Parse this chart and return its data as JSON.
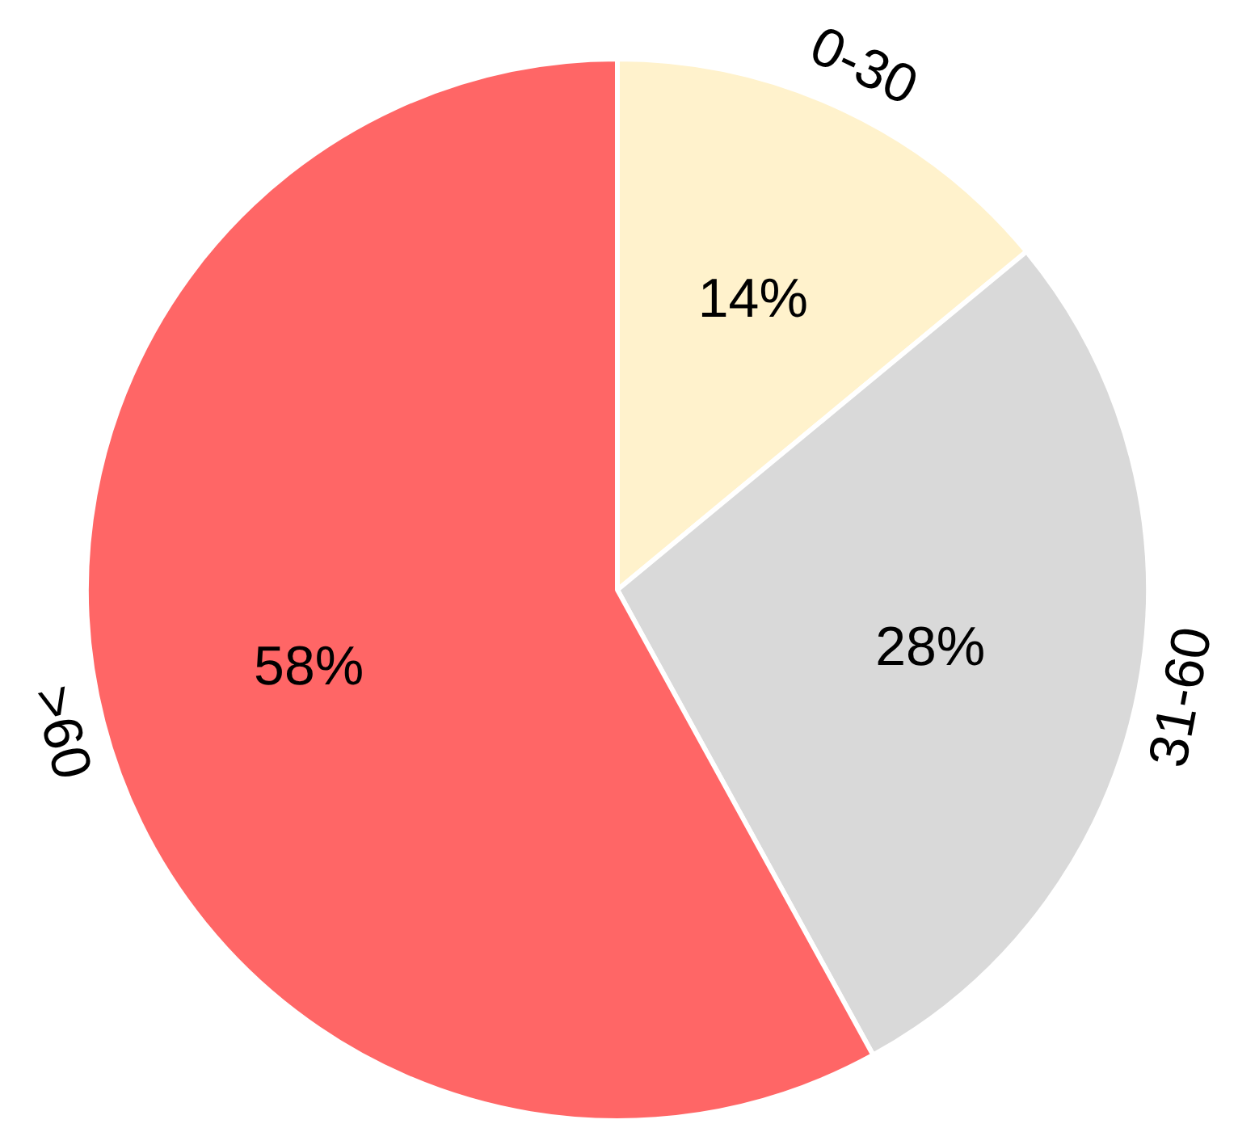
{
  "chart_data": {
    "type": "pie",
    "categories": [
      "0-30",
      "31-60",
      ">60"
    ],
    "values": [
      14,
      28,
      58
    ],
    "value_labels": [
      "14%",
      "28%",
      "58%"
    ],
    "colors": [
      "#fff2cc",
      "#d9d9d9",
      "#ff6666"
    ]
  }
}
